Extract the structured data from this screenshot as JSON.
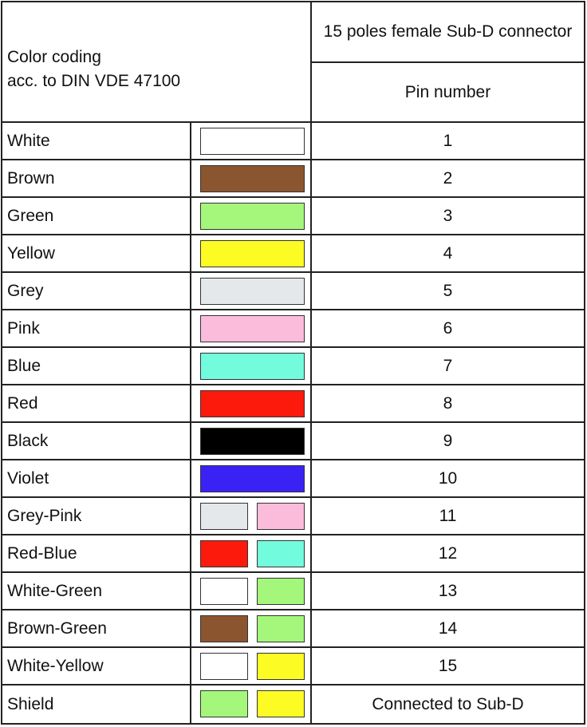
{
  "header": {
    "left_line1": "Color coding",
    "left_line2": "acc. to DIN VDE 47100",
    "right_top": "15 poles female Sub-D connector",
    "right_bottom": "Pin number"
  },
  "rows": [
    {
      "name": "White",
      "colors": [
        "#ffffff"
      ],
      "pin": "1"
    },
    {
      "name": "Brown",
      "colors": [
        "#8b5530"
      ],
      "pin": "2"
    },
    {
      "name": "Green",
      "colors": [
        "#a4f77a"
      ],
      "pin": "3"
    },
    {
      "name": "Yellow",
      "colors": [
        "#fdfb24"
      ],
      "pin": "4"
    },
    {
      "name": "Grey",
      "colors": [
        "#e4e8ea"
      ],
      "pin": "5"
    },
    {
      "name": "Pink",
      "colors": [
        "#fbbcdc"
      ],
      "pin": "6"
    },
    {
      "name": "Blue",
      "colors": [
        "#72fbdc"
      ],
      "pin": "7"
    },
    {
      "name": "Red",
      "colors": [
        "#fb1a0c"
      ],
      "pin": "8"
    },
    {
      "name": "Black",
      "colors": [
        "#000000"
      ],
      "pin": "9"
    },
    {
      "name": "Violet",
      "colors": [
        "#3a22f5"
      ],
      "pin": "10"
    },
    {
      "name": "Grey-Pink",
      "colors": [
        "#e4e8ea",
        "#fbbcdc"
      ],
      "pin": "11"
    },
    {
      "name": "Red-Blue",
      "colors": [
        "#fb1a0c",
        "#72fbdc"
      ],
      "pin": "12"
    },
    {
      "name": "White-Green",
      "colors": [
        "#ffffff",
        "#a4f77a"
      ],
      "pin": "13"
    },
    {
      "name": "Brown-Green",
      "colors": [
        "#8b5530",
        "#a4f77a"
      ],
      "pin": "14"
    },
    {
      "name": "White-Yellow",
      "colors": [
        "#ffffff",
        "#fdfb24"
      ],
      "pin": "15"
    },
    {
      "name": "Shield",
      "colors": [
        "#a4f77a",
        "#fdfb24"
      ],
      "pin": "Connected to Sub-D"
    }
  ]
}
